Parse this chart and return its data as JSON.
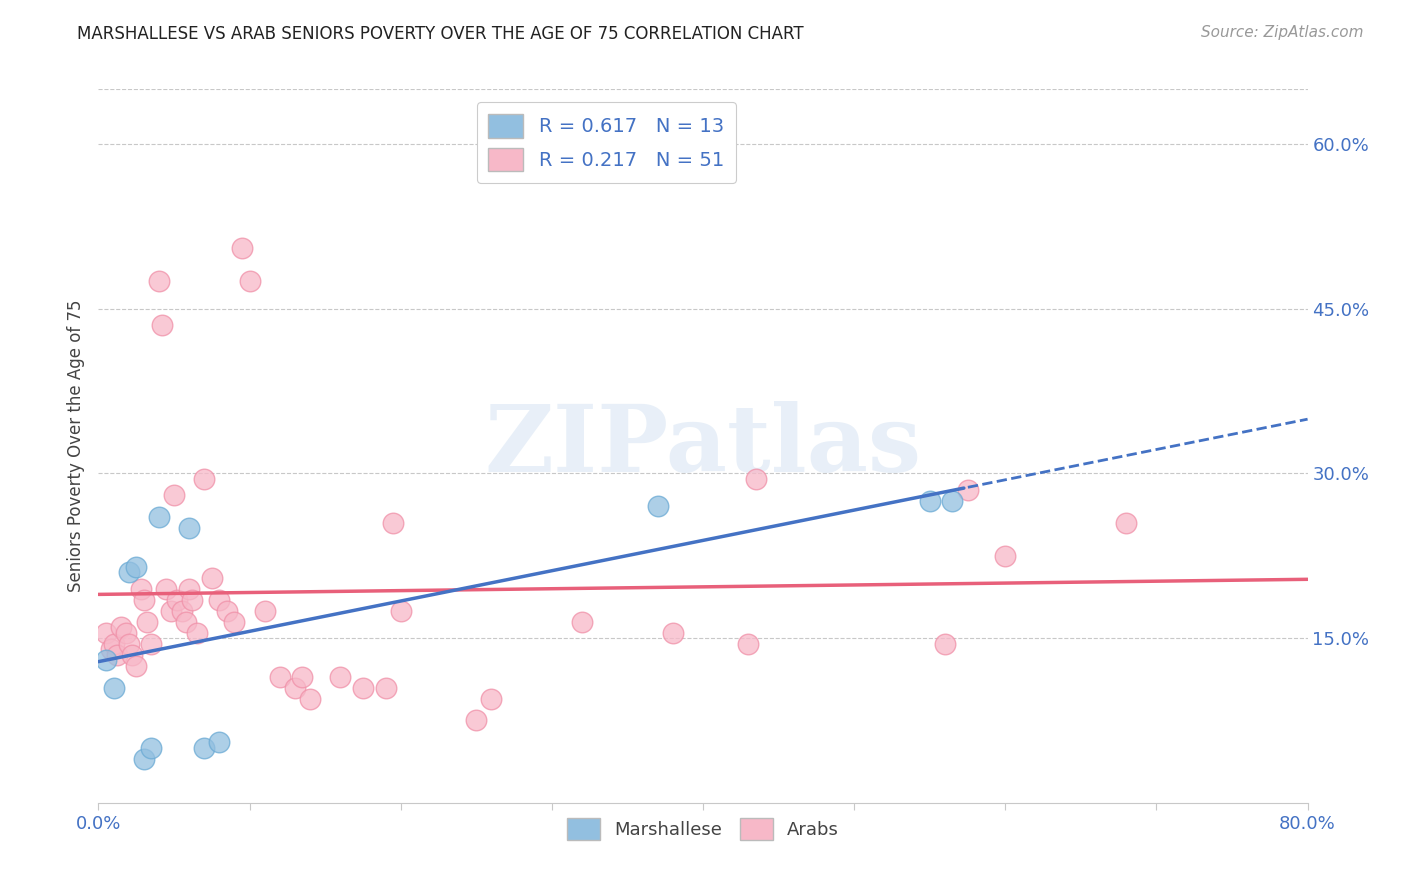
{
  "title": "MARSHALLESE VS ARAB SENIORS POVERTY OVER THE AGE OF 75 CORRELATION CHART",
  "source": "Source: ZipAtlas.com",
  "ylabel": "Seniors Poverty Over the Age of 75",
  "xlim": [
    0.0,
    0.8
  ],
  "ylim": [
    0.0,
    0.65
  ],
  "xticks": [
    0.0,
    0.1,
    0.2,
    0.3,
    0.4,
    0.5,
    0.6,
    0.7,
    0.8
  ],
  "xticklabels": [
    "0.0%",
    "",
    "",
    "",
    "",
    "",
    "",
    "",
    "80.0%"
  ],
  "ytick_positions": [
    0.15,
    0.3,
    0.45,
    0.6
  ],
  "ytick_labels": [
    "15.0%",
    "30.0%",
    "45.0%",
    "60.0%"
  ],
  "grid_color": "#c8c8c8",
  "background_color": "#ffffff",
  "watermark_text": "ZIPatlas",
  "marshallese_color": "#92bfe0",
  "marshallese_edge": "#6aaad4",
  "arab_color": "#f7b8c8",
  "arab_edge": "#f090a8",
  "marshallese_R": 0.617,
  "marshallese_N": 13,
  "arab_R": 0.217,
  "arab_N": 51,
  "marshallese_line_color": "#4472c4",
  "arab_line_color": "#e8607a",
  "marshallese_x": [
    0.005,
    0.01,
    0.02,
    0.025,
    0.03,
    0.035,
    0.04,
    0.06,
    0.07,
    0.08,
    0.37,
    0.55,
    0.565
  ],
  "marshallese_y": [
    0.13,
    0.105,
    0.21,
    0.215,
    0.04,
    0.05,
    0.26,
    0.25,
    0.05,
    0.055,
    0.27,
    0.275,
    0.275
  ],
  "arab_x": [
    0.005,
    0.008,
    0.01,
    0.012,
    0.015,
    0.018,
    0.02,
    0.022,
    0.025,
    0.028,
    0.03,
    0.032,
    0.035,
    0.04,
    0.042,
    0.045,
    0.048,
    0.05,
    0.052,
    0.055,
    0.058,
    0.06,
    0.062,
    0.065,
    0.07,
    0.075,
    0.08,
    0.085,
    0.09,
    0.095,
    0.1,
    0.11,
    0.12,
    0.13,
    0.135,
    0.14,
    0.16,
    0.175,
    0.19,
    0.195,
    0.2,
    0.25,
    0.26,
    0.32,
    0.38,
    0.43,
    0.435,
    0.56,
    0.575,
    0.6,
    0.68
  ],
  "arab_y": [
    0.155,
    0.14,
    0.145,
    0.135,
    0.16,
    0.155,
    0.145,
    0.135,
    0.125,
    0.195,
    0.185,
    0.165,
    0.145,
    0.475,
    0.435,
    0.195,
    0.175,
    0.28,
    0.185,
    0.175,
    0.165,
    0.195,
    0.185,
    0.155,
    0.295,
    0.205,
    0.185,
    0.175,
    0.165,
    0.505,
    0.475,
    0.175,
    0.115,
    0.105,
    0.115,
    0.095,
    0.115,
    0.105,
    0.105,
    0.255,
    0.175,
    0.075,
    0.095,
    0.165,
    0.155,
    0.145,
    0.295,
    0.145,
    0.285,
    0.225,
    0.255
  ]
}
